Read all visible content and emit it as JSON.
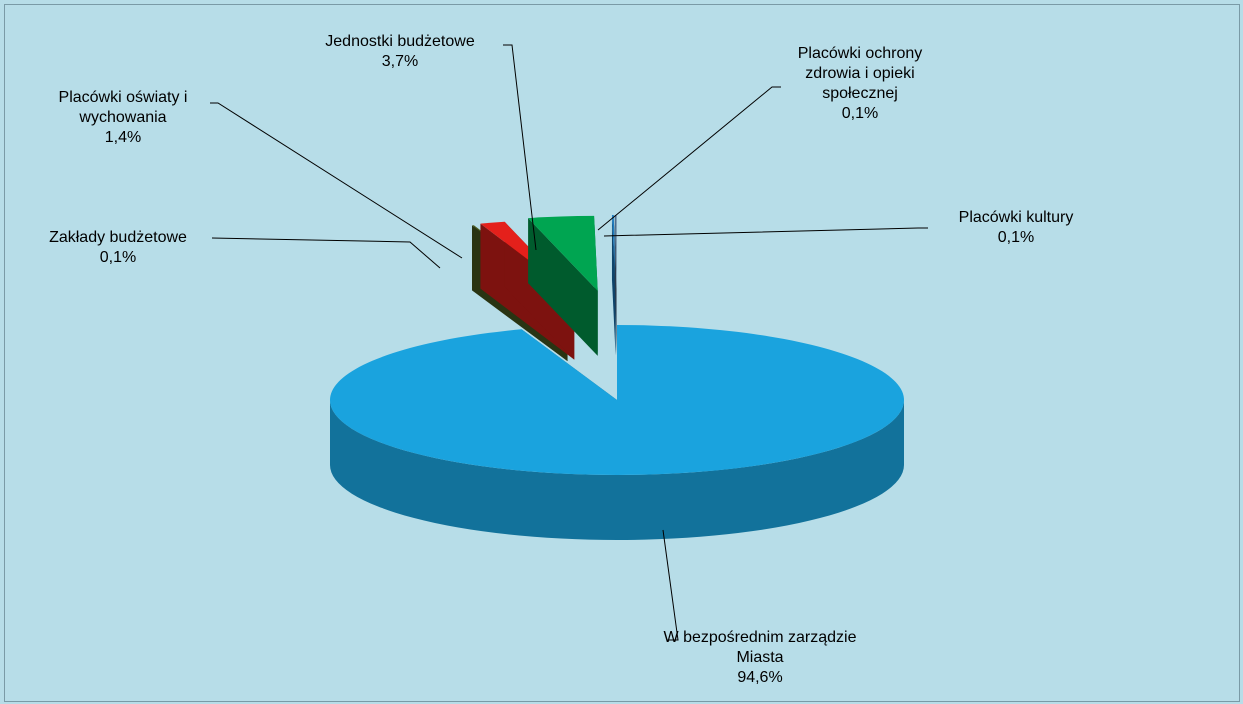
{
  "chart_data": {
    "type": "pie",
    "categories": [
      "W bezpośrednim zarządzie Miasta",
      "Zakłady budżetowe",
      "Placówki oświaty i wychowania",
      "Jednostki budżetowe",
      "Placówki ochrony zdrowia i opieki społecznej",
      "Placówki kultury"
    ],
    "values": [
      94.6,
      0.1,
      1.4,
      3.7,
      0.1,
      0.1
    ],
    "value_labels": [
      "94,6%",
      "0,1%",
      "1,4%",
      "3,7%",
      "0,1%",
      "0,1%"
    ],
    "colors": [
      "#1aa3de",
      "#4b5f22",
      "#e4201b",
      "#00a551",
      "#1c7cc2",
      "#4e6c8c"
    ]
  }
}
